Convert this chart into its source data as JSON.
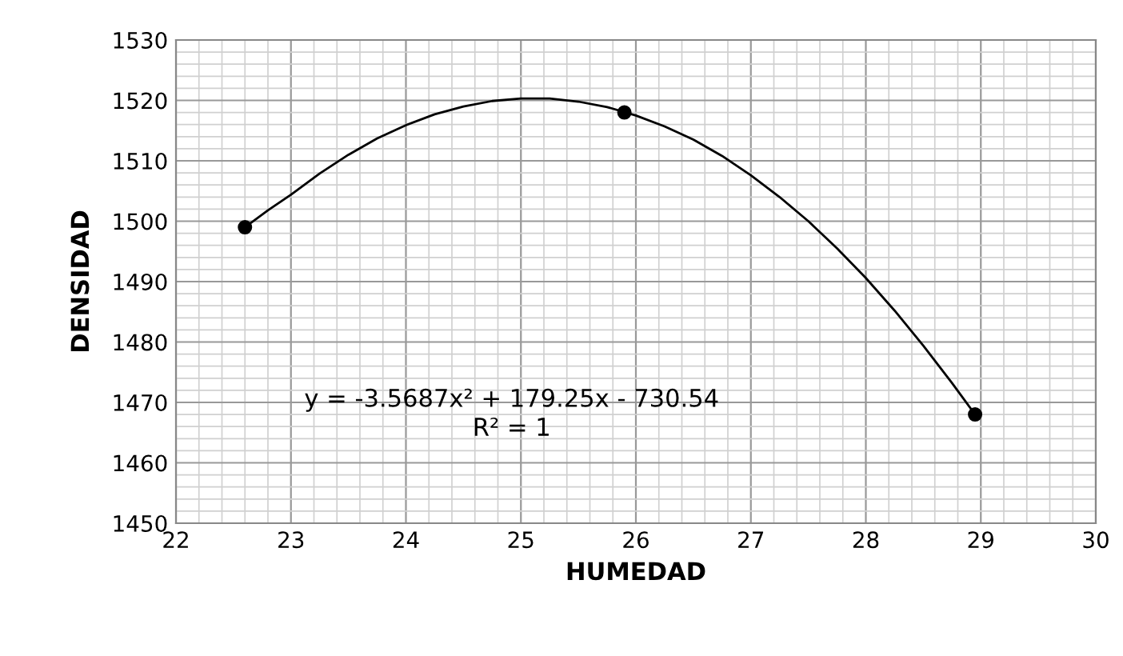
{
  "chart_data": {
    "type": "scatter",
    "xlabel": "HUMEDAD",
    "ylabel": "DENSIDAD",
    "series": [
      {
        "color": "#000000",
        "marker": "circle",
        "x": [
          22.6,
          25.9,
          28.95
        ],
        "values": [
          1499,
          1518,
          1468
        ]
      },
      {
        "type": "line",
        "color": "#000000",
        "marker": "none",
        "x": [
          22.6,
          22.8,
          23,
          23.25,
          23.5,
          23.75,
          24,
          24.25,
          24.5,
          24.75,
          25,
          25.25,
          25.5,
          25.75,
          26,
          26.25,
          26.5,
          26.75,
          27,
          27.25,
          27.5,
          27.75,
          28,
          28.25,
          28.5,
          28.75,
          28.95
        ],
        "values": [
          1499,
          1501.8,
          1504.4,
          1507.9,
          1511,
          1513.7,
          1515.9,
          1517.7,
          1519,
          1519.9,
          1520.3,
          1520.3,
          1519.8,
          1518.9,
          1517.5,
          1515.7,
          1513.5,
          1510.8,
          1507.6,
          1504,
          1500,
          1495.5,
          1490.6,
          1485.2,
          1479.4,
          1473.2,
          1468
        ]
      }
    ],
    "annotations": [
      "y = -3.5687x² + 179.25x - 730.54",
      "R² = 1"
    ],
    "xlim": [
      22,
      30
    ],
    "xticks": [
      22,
      23,
      24,
      25,
      26,
      27,
      28,
      29,
      30
    ],
    "ylim": [
      1450,
      1530
    ],
    "yticks": [
      1450,
      1460,
      1470,
      1480,
      1490,
      1500,
      1510,
      1520,
      1530
    ],
    "grid": true,
    "legend": false
  }
}
